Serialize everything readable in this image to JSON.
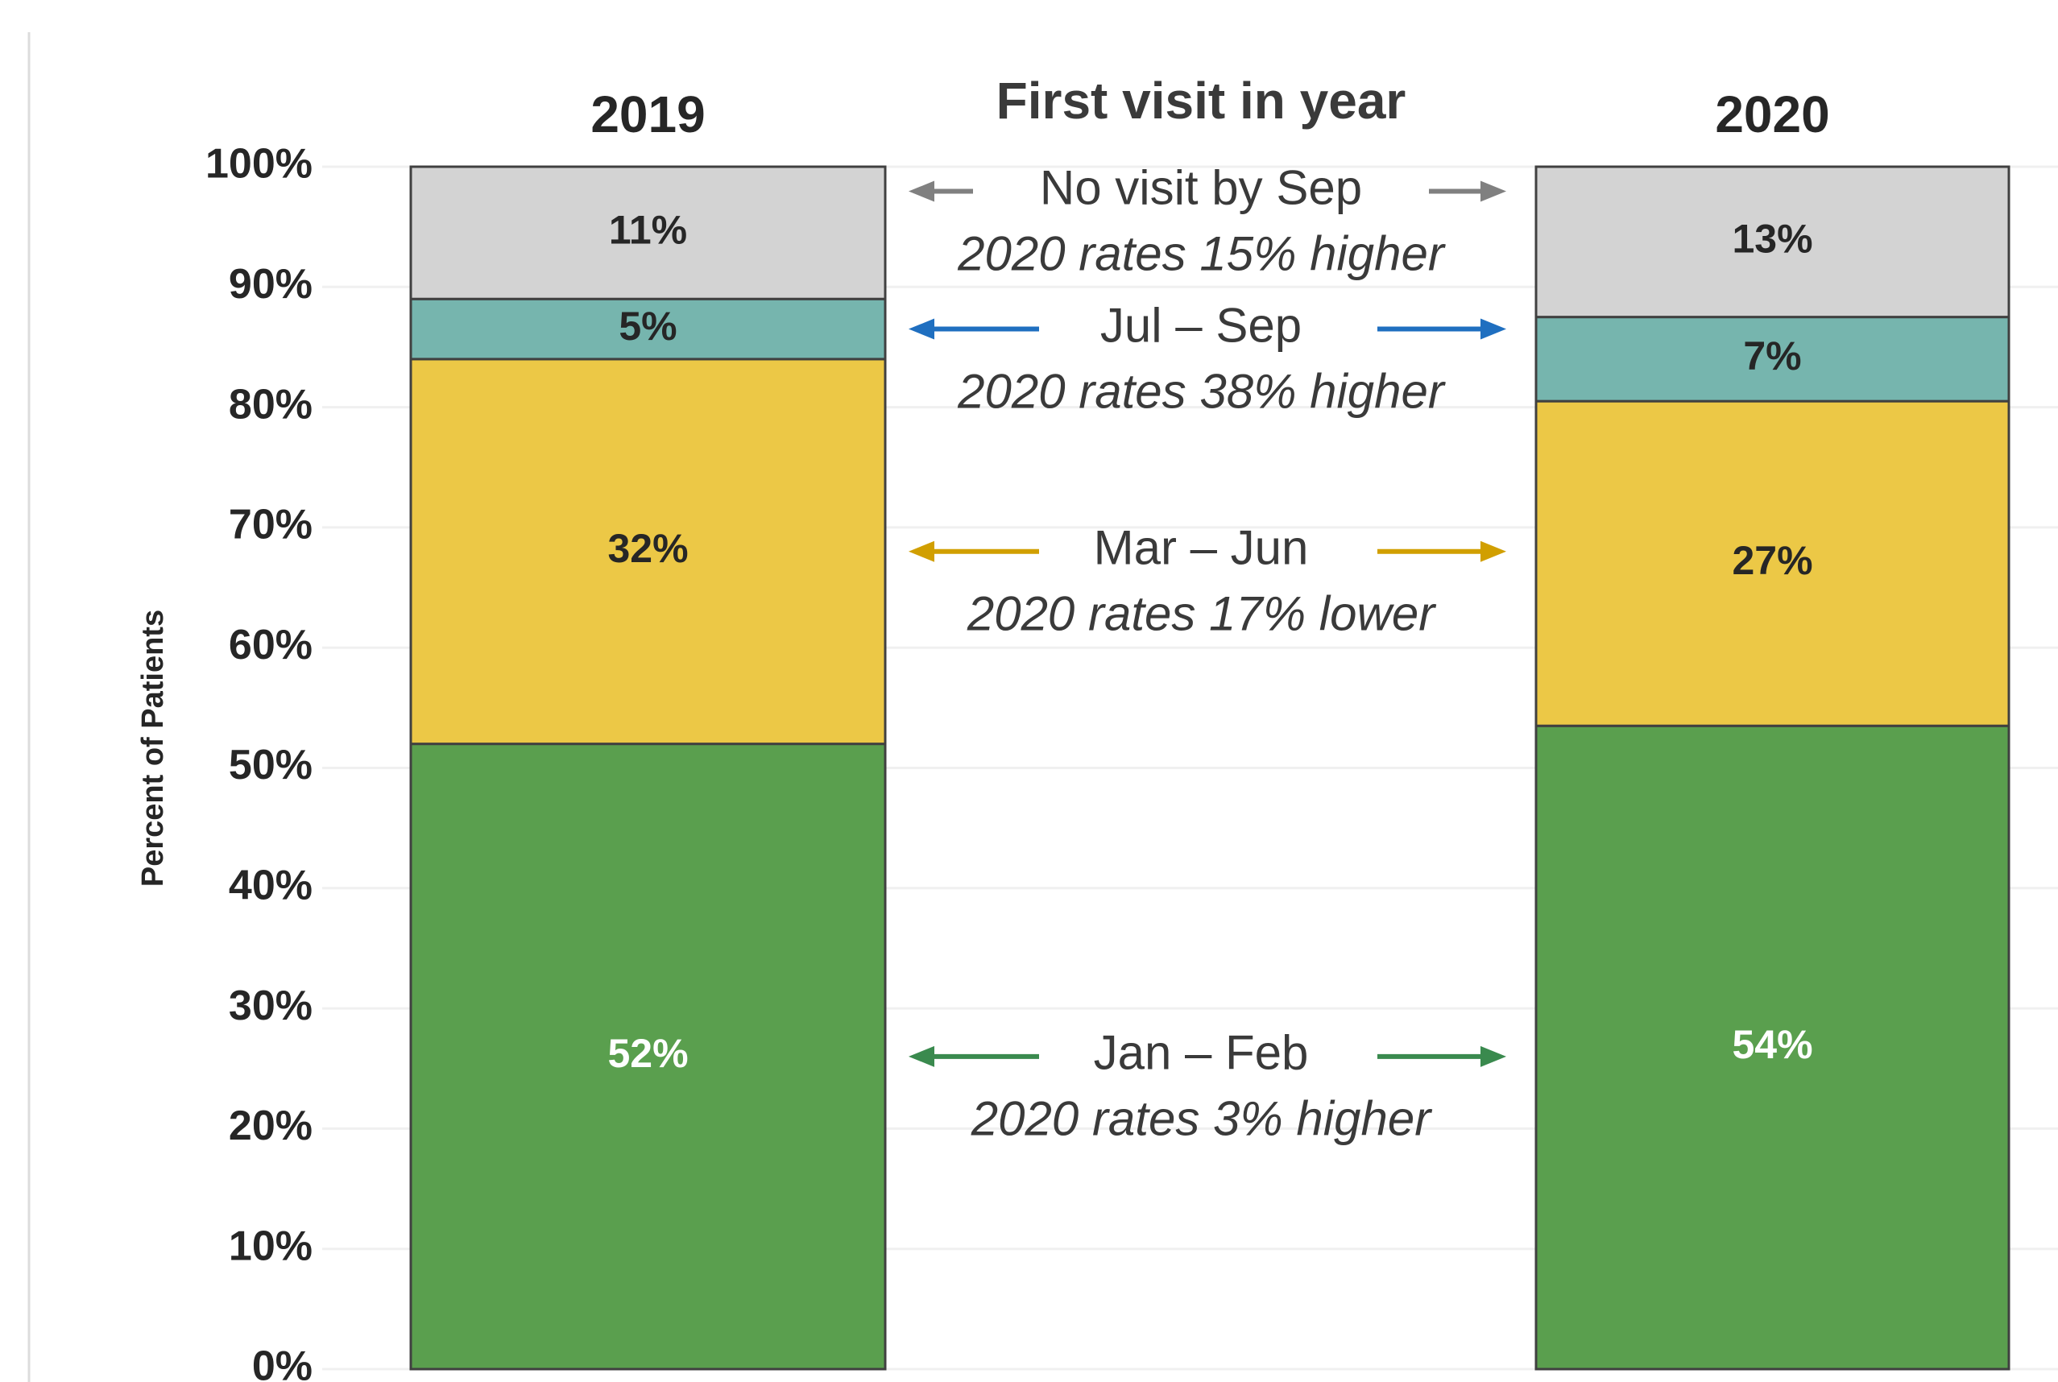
{
  "chart_data": {
    "type": "stacked_bar",
    "annotation_title": "First visit in year",
    "y_axis_label": "Percent of Patients",
    "categories": [
      "2019",
      "2020"
    ],
    "series": [
      {
        "name": "Jan – Feb",
        "comparison": "2020 rates 3% higher",
        "color": "#5a9f4e",
        "arrow_color": "#3a8a4e",
        "values": [
          52,
          53.5
        ],
        "value_labels": [
          "52%",
          "54%"
        ]
      },
      {
        "name": "Mar – Jun",
        "comparison": "2020 rates 17% lower",
        "color": "#ecc846",
        "arrow_color": "#d19f00",
        "values": [
          32,
          27
        ],
        "value_labels": [
          "32%",
          "27%"
        ]
      },
      {
        "name": "Jul – Sep",
        "comparison": "2020 rates 38% higher",
        "color": "#76b5ae",
        "arrow_color": "#1f6fc0",
        "values": [
          5,
          7
        ],
        "value_labels": [
          "5%",
          "7%"
        ]
      },
      {
        "name": "No visit by Sep",
        "comparison": "2020 rates 15% higher",
        "color": "#d3d3d3",
        "arrow_color": "#808080",
        "values": [
          11,
          12.5
        ],
        "value_labels": [
          "11%",
          "13%"
        ]
      }
    ],
    "ylim": [
      0,
      100
    ],
    "yticks": [
      {
        "value": 0,
        "label": "0%"
      },
      {
        "value": 10,
        "label": "10%"
      },
      {
        "value": 20,
        "label": "20%"
      },
      {
        "value": 30,
        "label": "30%"
      },
      {
        "value": 40,
        "label": "40%"
      },
      {
        "value": 50,
        "label": "50%"
      },
      {
        "value": 60,
        "label": "60%"
      },
      {
        "value": 70,
        "label": "70%"
      },
      {
        "value": 80,
        "label": "80%"
      },
      {
        "value": 90,
        "label": "90%"
      },
      {
        "value": 100,
        "label": "100%"
      }
    ],
    "grid": true
  }
}
